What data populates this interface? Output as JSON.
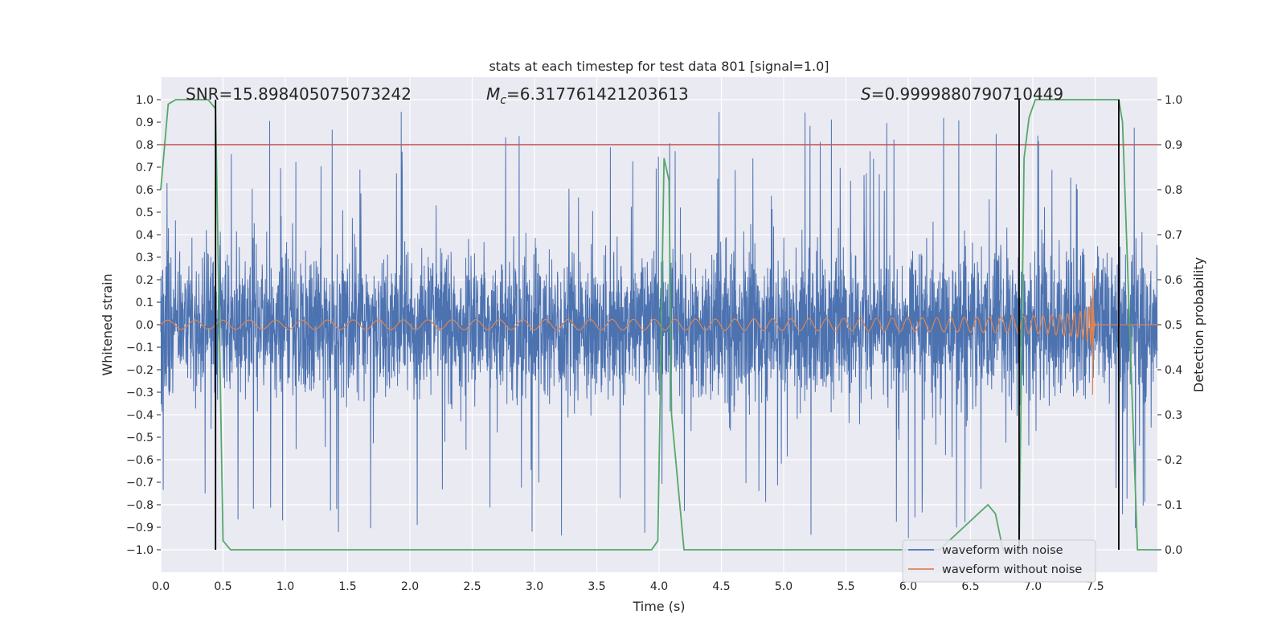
{
  "chart_data": {
    "type": "line",
    "title": "stats at each timestep for test data 801 [signal=1.0]",
    "xlabel": "Time (s)",
    "ylabel": "Whitened strain",
    "y2label": "Detection probability",
    "xlim": [
      0.0,
      8.0
    ],
    "ylim": [
      -1.1,
      1.1
    ],
    "y2lim": [
      -0.05,
      1.05
    ],
    "x_ticks": [
      "0.0",
      "0.5",
      "1.0",
      "1.5",
      "2.0",
      "2.5",
      "3.0",
      "3.5",
      "4.0",
      "4.5",
      "5.0",
      "5.5",
      "6.0",
      "6.5",
      "7.0",
      "7.5"
    ],
    "x_tick_values": [
      0.0,
      0.5,
      1.0,
      1.5,
      2.0,
      2.5,
      3.0,
      3.5,
      4.0,
      4.5,
      5.0,
      5.5,
      6.0,
      6.5,
      7.0,
      7.5
    ],
    "y_ticks": [
      "1.0",
      "0.9",
      "0.8",
      "0.7",
      "0.6",
      "0.5",
      "0.4",
      "0.3",
      "0.2",
      "0.1",
      "0.0",
      "−0.1",
      "−0.2",
      "−0.3",
      "−0.4",
      "−0.5",
      "−0.6",
      "−0.7",
      "−0.8",
      "−0.9",
      "−1.0"
    ],
    "y_tick_values": [
      1.0,
      0.9,
      0.8,
      0.7,
      0.6,
      0.5,
      0.4,
      0.3,
      0.2,
      0.1,
      0.0,
      -0.1,
      -0.2,
      -0.3,
      -0.4,
      -0.5,
      -0.6,
      -0.7,
      -0.8,
      -0.9,
      -1.0
    ],
    "y2_ticks": [
      "1.0",
      "0.9",
      "0.8",
      "0.7",
      "0.6",
      "0.5",
      "0.4",
      "0.3",
      "0.2",
      "0.1",
      "0.0"
    ],
    "y2_tick_values": [
      1.0,
      0.9,
      0.8,
      0.7,
      0.6,
      0.5,
      0.4,
      0.3,
      0.2,
      0.1,
      0.0
    ],
    "grid": true,
    "legend_position": "bottom-right",
    "annotations": {
      "snr": "SNR=15.898405075073242",
      "mc_symbol": "M",
      "mc_sub": "c",
      "mc_value": "=6.317761421203613",
      "s_symbol": "S",
      "s_value": "=0.9999880790710449"
    },
    "threshold": {
      "value": 0.9,
      "axis": "right",
      "color": "#c44e52"
    },
    "vertical_lines": [
      0.44,
      6.89,
      7.69
    ],
    "series": [
      {
        "name": "waveform with noise",
        "axis": "left",
        "color": "#4c72b0",
        "style": "noise",
        "envelope_p95": 0.4,
        "extreme": 1.0,
        "samples": 4000
      },
      {
        "name": "waveform without noise",
        "axis": "left",
        "color": "#dd8452",
        "style": "chirp",
        "amplitude_start": 0.02,
        "amplitude_peak": 0.37,
        "merger_time": 7.48
      },
      {
        "axis": "right",
        "color": "#55a868",
        "style": "probability",
        "x": [
          0.0,
          0.06,
          0.12,
          0.2,
          0.3,
          0.38,
          0.44,
          0.5,
          0.56,
          3.94,
          3.99,
          4.04,
          4.08,
          4.1,
          4.2,
          6.25,
          6.6,
          6.64,
          6.7,
          6.76,
          6.89,
          6.93,
          6.97,
          7.02,
          7.5,
          7.69,
          7.72,
          7.84,
          8.0
        ],
        "y": [
          0.8,
          0.99,
          1.0,
          1.0,
          1.0,
          1.0,
          0.98,
          0.02,
          0.0,
          0.0,
          0.02,
          0.87,
          0.82,
          0.3,
          0.0,
          0.0,
          0.09,
          0.1,
          0.08,
          0.0,
          0.0,
          0.87,
          0.96,
          1.0,
          1.0,
          1.0,
          0.95,
          0.0,
          0.0
        ]
      }
    ]
  }
}
